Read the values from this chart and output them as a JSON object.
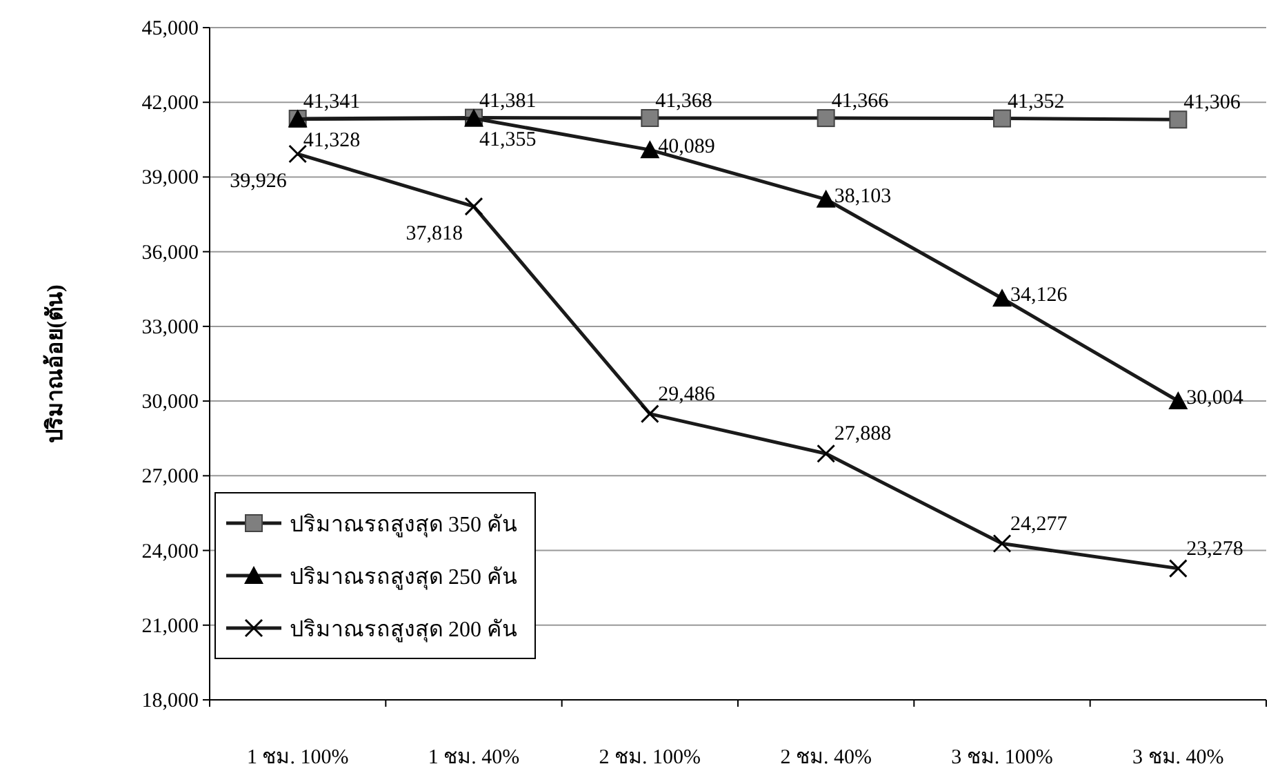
{
  "chart_data": {
    "type": "line",
    "ylabel": "ปริมาณอ้อย(ตัน)",
    "categories": [
      "1 ชม. 100%",
      "1 ชม. 40%",
      "2 ชม. 100%",
      "2 ชม. 40%",
      "3 ชม. 100%",
      "3 ชม. 40%"
    ],
    "series": [
      {
        "name": "ปริมาณรถสูงสุด 350 คัน",
        "color": "#7f7f7f",
        "marker": "square",
        "values": [
          41341,
          41381,
          41368,
          41366,
          41352,
          41306
        ],
        "value_labels": [
          "41,341",
          "41,381",
          "41,368",
          "41,366",
          "41,352",
          "41,306"
        ]
      },
      {
        "name": "ปริมาณรถสูงสุด 250 คัน",
        "color": "#000000",
        "marker": "triangle",
        "values": [
          41328,
          41355,
          40089,
          38103,
          34126,
          30004
        ],
        "value_labels": [
          "41,328",
          "41,355",
          "40,089",
          "38,103",
          "34,126",
          "30,004"
        ]
      },
      {
        "name": "ปริมาณรถสูงสุด 200 คัน",
        "color": "#000000",
        "marker": "cross",
        "values": [
          39926,
          37818,
          29486,
          27888,
          24277,
          23278
        ],
        "value_labels": [
          "39,926",
          "37,818",
          "29,486",
          "27,888",
          "24,277",
          "23,278"
        ]
      }
    ],
    "ylim": [
      18000,
      45000
    ],
    "yticks": [
      {
        "value": 18000,
        "label": "18,000"
      },
      {
        "value": 21000,
        "label": "21,000"
      },
      {
        "value": 24000,
        "label": "24,000"
      },
      {
        "value": 27000,
        "label": "27,000"
      },
      {
        "value": 30000,
        "label": "30,000"
      },
      {
        "value": 33000,
        "label": "33,000"
      },
      {
        "value": 36000,
        "label": "36,000"
      },
      {
        "value": 39000,
        "label": "39,000"
      },
      {
        "value": 42000,
        "label": "42,000"
      },
      {
        "value": 45000,
        "label": "45,000"
      }
    ],
    "grid": "y",
    "legend": "bottom left",
    "line_style": "solid"
  }
}
